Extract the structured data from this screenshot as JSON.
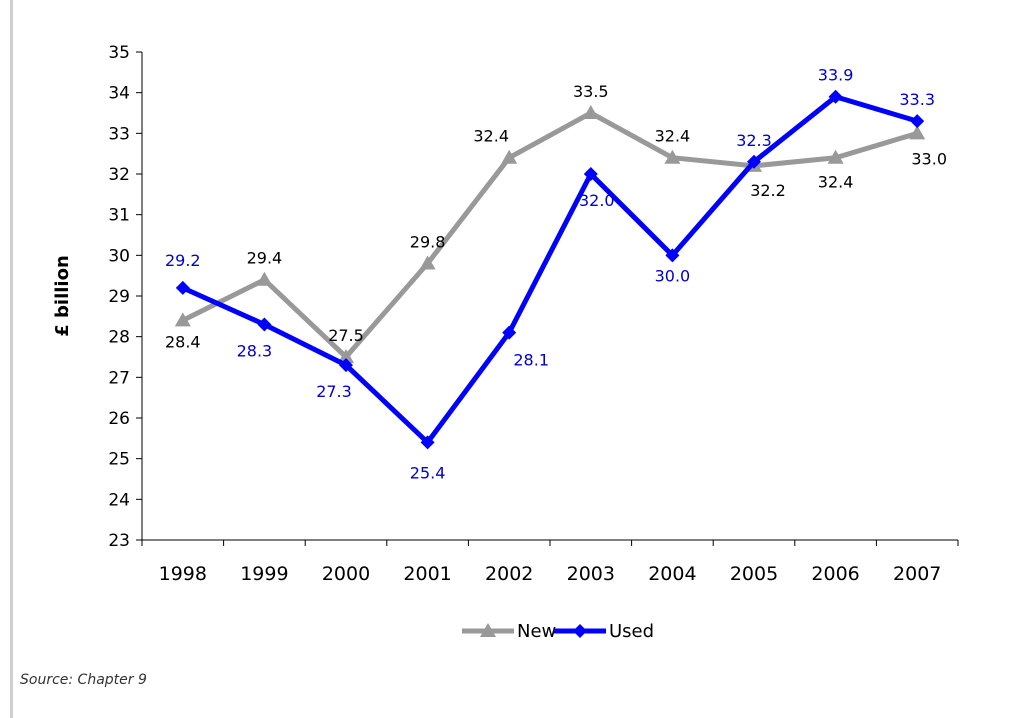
{
  "chart_data": {
    "type": "line",
    "title": "",
    "xlabel": "",
    "ylabel": "£ billion",
    "ylim": [
      23,
      35
    ],
    "y_ticks": [
      23,
      24,
      25,
      26,
      27,
      28,
      29,
      30,
      31,
      32,
      33,
      34,
      35
    ],
    "categories": [
      "1998",
      "1999",
      "2000",
      "2001",
      "2002",
      "2003",
      "2004",
      "2005",
      "2006",
      "2007"
    ],
    "grid": false,
    "legend_position": "bottom",
    "series": [
      {
        "name": "New",
        "color": "#999999",
        "marker": "triangle",
        "values": [
          28.4,
          29.4,
          27.5,
          29.8,
          32.4,
          33.5,
          32.4,
          32.2,
          32.4,
          33.0
        ],
        "labels": [
          "28.4",
          "29.4",
          "27.5",
          "29.8",
          "32.4",
          "33.5",
          "32.4",
          "32.2",
          "32.4",
          "33.0"
        ]
      },
      {
        "name": "Used",
        "color": "#0000ff",
        "marker": "diamond",
        "values": [
          29.2,
          28.3,
          27.3,
          25.4,
          28.1,
          32.0,
          30.0,
          32.3,
          33.9,
          33.3
        ],
        "labels": [
          "29.2",
          "28.3",
          "27.3",
          "25.4",
          "28.1",
          "32.0",
          "30.0",
          "32.3",
          "33.9",
          "33.3"
        ]
      }
    ]
  },
  "source_note": "Source: Chapter 9"
}
